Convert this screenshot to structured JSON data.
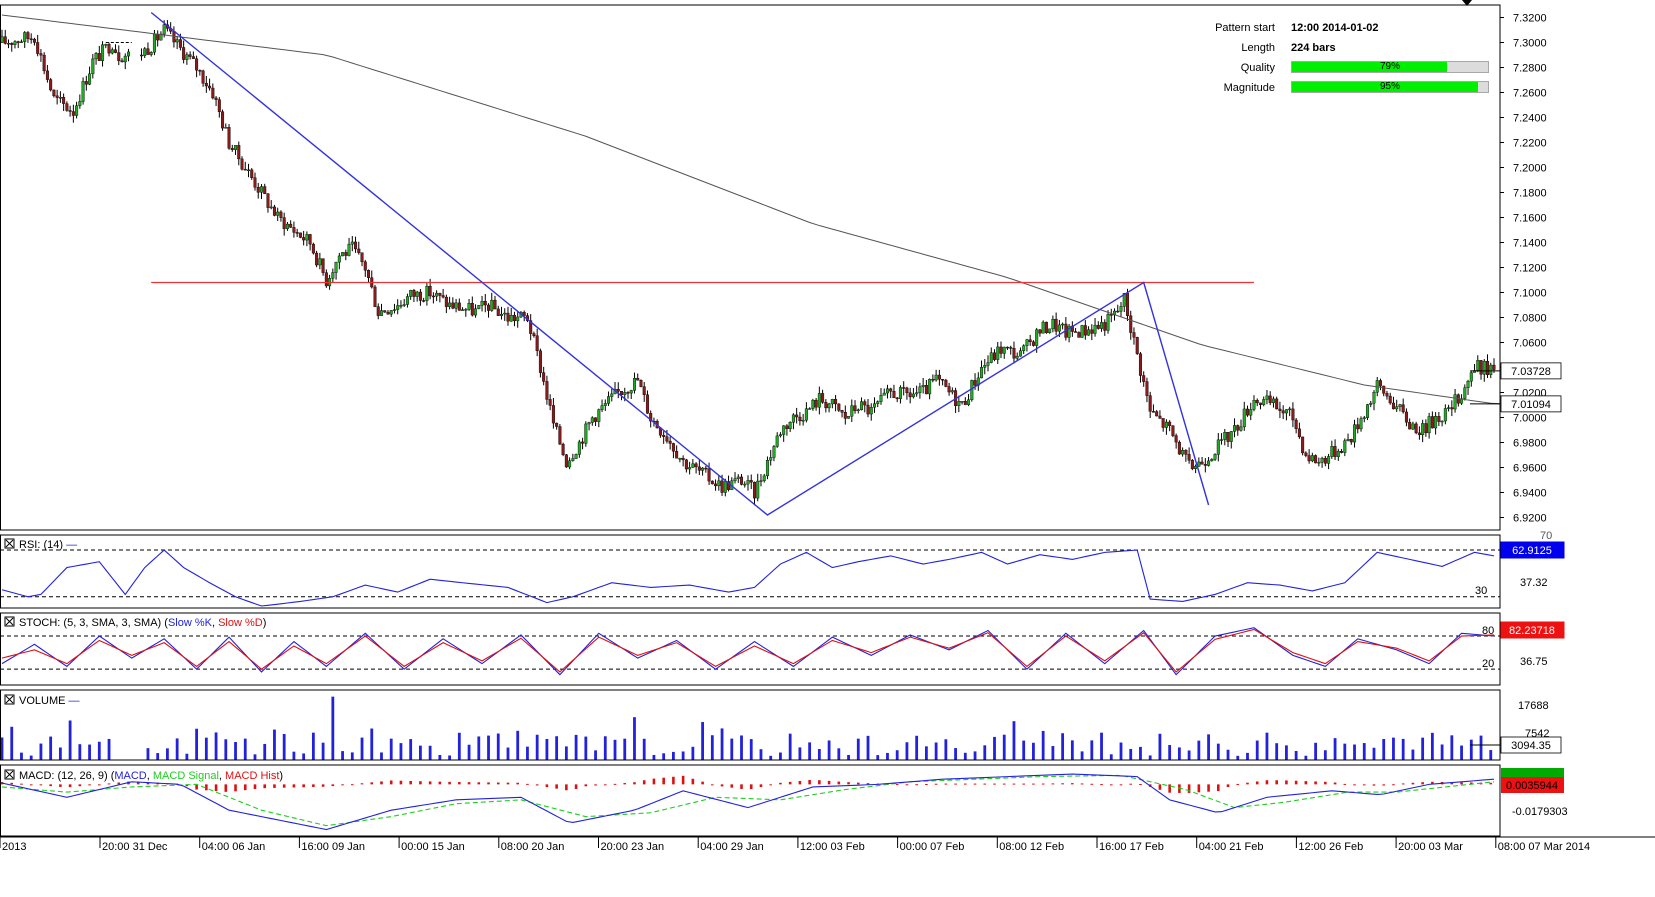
{
  "info": {
    "pattern_start_label": "Pattern start",
    "pattern_start_value": "12:00 2014-01-02",
    "length_label": "Length",
    "length_value": "224 bars",
    "quality_label": "Quality",
    "quality_value": 79,
    "quality_text": "79%",
    "magnitude_label": "Magnitude",
    "magnitude_value": 95,
    "magnitude_text": "95%"
  },
  "colors": {
    "bull": "#22aa22",
    "bear": "#8b1a1a",
    "pattern_line": "#3333dd",
    "resistance": "#ee3333",
    "sma": "#555555",
    "indicator_blue": "#2222dd",
    "indicator_red": "#dd1111",
    "macd_signal": "#22cc22",
    "highlight_badge": "#0000ee"
  },
  "chart_data": {
    "type": "candlestick",
    "x_ticks": [
      "2013",
      "20:00 31 Dec",
      "04:00 06 Jan",
      "16:00 09 Jan",
      "00:00 15 Jan",
      "08:00 20 Jan",
      "20:00 23 Jan",
      "04:00 29 Jan",
      "12:00 03 Feb",
      "00:00 07 Feb",
      "08:00 12 Feb",
      "16:00 17 Feb",
      "04:00 21 Feb",
      "12:00 26 Feb",
      "20:00 03 Mar",
      "08:00 07 Mar 2014"
    ],
    "price": {
      "ylim": [
        6.91,
        7.33
      ],
      "y_ticks": [
        "7.3200",
        "7.3000",
        "7.2800",
        "7.2600",
        "7.2400",
        "7.2200",
        "7.2000",
        "7.1800",
        "7.1600",
        "7.1400",
        "7.1200",
        "7.1000",
        "7.0800",
        "7.0600",
        "7.0400",
        "7.0200",
        "7.0000",
        "6.9800",
        "6.9600",
        "6.9400",
        "6.9200"
      ],
      "path_points": [
        [
          0,
          7.3
        ],
        [
          10,
          7.305
        ],
        [
          16,
          7.255
        ],
        [
          22,
          7.245
        ],
        [
          28,
          7.285
        ],
        [
          34,
          7.3
        ],
        [
          36,
          7.29
        ],
        [
          42,
          7.29
        ],
        [
          46,
          7.298
        ],
        [
          50,
          7.31
        ],
        [
          54,
          7.298
        ],
        [
          60,
          7.28
        ],
        [
          65,
          7.26
        ],
        [
          70,
          7.22
        ],
        [
          75,
          7.2
        ],
        [
          80,
          7.18
        ],
        [
          85,
          7.16
        ],
        [
          90,
          7.15
        ],
        [
          95,
          7.14
        ],
        [
          100,
          7.11
        ],
        [
          104,
          7.13
        ],
        [
          108,
          7.135
        ],
        [
          112,
          7.12
        ],
        [
          116,
          7.085
        ],
        [
          122,
          7.09
        ],
        [
          126,
          7.098
        ],
        [
          132,
          7.1
        ],
        [
          138,
          7.09
        ],
        [
          146,
          7.085
        ],
        [
          150,
          7.09
        ],
        [
          156,
          7.08
        ],
        [
          162,
          7.08
        ],
        [
          166,
          7.04
        ],
        [
          170,
          6.995
        ],
        [
          174,
          6.965
        ],
        [
          178,
          6.98
        ],
        [
          182,
          7.0
        ],
        [
          186,
          7.01
        ],
        [
          190,
          7.02
        ],
        [
          196,
          7.03
        ],
        [
          200,
          7.0
        ],
        [
          205,
          6.985
        ],
        [
          210,
          6.965
        ],
        [
          216,
          6.955
        ],
        [
          222,
          6.945
        ],
        [
          228,
          6.95
        ],
        [
          232,
          6.94
        ],
        [
          236,
          6.965
        ],
        [
          240,
          6.99
        ],
        [
          244,
          7.0
        ],
        [
          248,
          7.005
        ],
        [
          252,
          7.015
        ],
        [
          256,
          7.01
        ],
        [
          260,
          7.0
        ],
        [
          264,
          7.01
        ],
        [
          268,
          7.005
        ],
        [
          274,
          7.02
        ],
        [
          278,
          7.018
        ],
        [
          284,
          7.02
        ],
        [
          288,
          7.03
        ],
        [
          292,
          7.02
        ],
        [
          296,
          7.01
        ],
        [
          302,
          7.04
        ],
        [
          308,
          7.055
        ],
        [
          314,
          7.05
        ],
        [
          320,
          7.07
        ],
        [
          324,
          7.075
        ],
        [
          328,
          7.068
        ],
        [
          334,
          7.07
        ],
        [
          340,
          7.075
        ],
        [
          344,
          7.085
        ],
        [
          346,
          7.095
        ],
        [
          350,
          7.05
        ],
        [
          354,
          7.005
        ],
        [
          360,
          6.99
        ],
        [
          366,
          6.96
        ],
        [
          370,
          6.965
        ],
        [
          374,
          6.975
        ],
        [
          380,
          6.99
        ],
        [
          386,
          7.015
        ],
        [
          392,
          7.01
        ],
        [
          398,
          7.0
        ],
        [
          402,
          6.97
        ],
        [
          406,
          6.965
        ],
        [
          412,
          6.975
        ],
        [
          416,
          6.985
        ],
        [
          420,
          7.005
        ],
        [
          424,
          7.025
        ],
        [
          428,
          7.015
        ],
        [
          434,
          6.995
        ],
        [
          438,
          6.99
        ],
        [
          442,
          7.0
        ],
        [
          446,
          7.005
        ],
        [
          450,
          7.02
        ],
        [
          454,
          7.04
        ],
        [
          458,
          7.04
        ],
        [
          460,
          7.038
        ]
      ],
      "sma_points": [
        [
          0,
          7.322
        ],
        [
          100,
          7.29
        ],
        [
          180,
          7.225
        ],
        [
          250,
          7.155
        ],
        [
          310,
          7.112
        ],
        [
          370,
          7.058
        ],
        [
          420,
          7.026
        ],
        [
          460,
          7.011
        ]
      ],
      "pattern_line": [
        [
          46,
          7.324
        ],
        [
          236,
          6.922
        ],
        [
          352,
          7.108
        ],
        [
          372,
          6.93
        ]
      ],
      "resistance_level": 7.108,
      "last_price": "7.03728",
      "sma_value": "7.01094",
      "candle_count": 461
    },
    "rsi": {
      "label": "RSI: (14)",
      "levels": [
        70,
        30
      ],
      "level_text": "30",
      "ticks": [
        "70",
        "37.32"
      ],
      "value": "62.9125",
      "path_points": [
        [
          0,
          36
        ],
        [
          8,
          30
        ],
        [
          12,
          32
        ],
        [
          20,
          55
        ],
        [
          30,
          60
        ],
        [
          38,
          32
        ],
        [
          44,
          55
        ],
        [
          50,
          70
        ],
        [
          56,
          55
        ],
        [
          64,
          42
        ],
        [
          72,
          30
        ],
        [
          80,
          22
        ],
        [
          92,
          26
        ],
        [
          102,
          30
        ],
        [
          112,
          40
        ],
        [
          122,
          34
        ],
        [
          132,
          45
        ],
        [
          142,
          42
        ],
        [
          156,
          38
        ],
        [
          168,
          25
        ],
        [
          176,
          30
        ],
        [
          188,
          42
        ],
        [
          200,
          38
        ],
        [
          212,
          40
        ],
        [
          224,
          34
        ],
        [
          232,
          38
        ],
        [
          240,
          58
        ],
        [
          248,
          68
        ],
        [
          256,
          55
        ],
        [
          264,
          60
        ],
        [
          274,
          65
        ],
        [
          284,
          58
        ],
        [
          292,
          62
        ],
        [
          302,
          68
        ],
        [
          310,
          58
        ],
        [
          320,
          66
        ],
        [
          330,
          62
        ],
        [
          340,
          68
        ],
        [
          350,
          70
        ],
        [
          354,
          28
        ],
        [
          364,
          26
        ],
        [
          374,
          32
        ],
        [
          384,
          42
        ],
        [
          394,
          40
        ],
        [
          404,
          35
        ],
        [
          414,
          42
        ],
        [
          424,
          68
        ],
        [
          434,
          62
        ],
        [
          444,
          56
        ],
        [
          454,
          68
        ],
        [
          460,
          65
        ]
      ]
    },
    "stoch": {
      "label": "STOCH: (5, 3, SMA, 3, SMA)",
      "legend_k": "Slow %K",
      "legend_d": "Slow %D",
      "levels": [
        80,
        20
      ],
      "ticks": [
        "80",
        "20",
        "36.75"
      ],
      "value": "82.23718",
      "k_points": [
        [
          0,
          30
        ],
        [
          10,
          65
        ],
        [
          20,
          25
        ],
        [
          30,
          80
        ],
        [
          40,
          40
        ],
        [
          50,
          75
        ],
        [
          60,
          20
        ],
        [
          70,
          78
        ],
        [
          80,
          15
        ],
        [
          90,
          70
        ],
        [
          100,
          25
        ],
        [
          112,
          85
        ],
        [
          124,
          20
        ],
        [
          136,
          75
        ],
        [
          148,
          30
        ],
        [
          160,
          82
        ],
        [
          172,
          10
        ],
        [
          184,
          85
        ],
        [
          196,
          40
        ],
        [
          208,
          72
        ],
        [
          220,
          20
        ],
        [
          232,
          70
        ],
        [
          244,
          25
        ],
        [
          256,
          78
        ],
        [
          268,
          45
        ],
        [
          280,
          82
        ],
        [
          292,
          55
        ],
        [
          304,
          90
        ],
        [
          316,
          20
        ],
        [
          328,
          85
        ],
        [
          340,
          30
        ],
        [
          352,
          90
        ],
        [
          362,
          10
        ],
        [
          374,
          80
        ],
        [
          386,
          95
        ],
        [
          398,
          45
        ],
        [
          408,
          25
        ],
        [
          418,
          75
        ],
        [
          430,
          55
        ],
        [
          440,
          30
        ],
        [
          450,
          85
        ],
        [
          460,
          80
        ]
      ],
      "d_points": [
        [
          0,
          40
        ],
        [
          10,
          55
        ],
        [
          20,
          30
        ],
        [
          30,
          72
        ],
        [
          40,
          45
        ],
        [
          50,
          68
        ],
        [
          60,
          25
        ],
        [
          70,
          70
        ],
        [
          80,
          20
        ],
        [
          90,
          62
        ],
        [
          100,
          30
        ],
        [
          112,
          80
        ],
        [
          124,
          25
        ],
        [
          136,
          68
        ],
        [
          148,
          35
        ],
        [
          160,
          76
        ],
        [
          172,
          15
        ],
        [
          184,
          78
        ],
        [
          196,
          45
        ],
        [
          208,
          68
        ],
        [
          220,
          25
        ],
        [
          232,
          62
        ],
        [
          244,
          30
        ],
        [
          256,
          72
        ],
        [
          268,
          50
        ],
        [
          280,
          78
        ],
        [
          292,
          58
        ],
        [
          304,
          86
        ],
        [
          316,
          25
        ],
        [
          328,
          80
        ],
        [
          340,
          35
        ],
        [
          352,
          86
        ],
        [
          362,
          15
        ],
        [
          374,
          74
        ],
        [
          386,
          92
        ],
        [
          398,
          50
        ],
        [
          408,
          30
        ],
        [
          418,
          70
        ],
        [
          430,
          58
        ],
        [
          440,
          35
        ],
        [
          450,
          80
        ],
        [
          460,
          82
        ]
      ]
    },
    "volume": {
      "label": "VOLUME",
      "ticks": [
        "17688",
        "7542"
      ],
      "value": "3094.35",
      "max": 25000,
      "seed": 17
    },
    "macd": {
      "label": "MACD: (12, 26, 9)",
      "legend_macd": "MACD",
      "legend_signal": "MACD Signal",
      "legend_hist": "MACD Hist",
      "ticks": [
        "-0.0179303"
      ],
      "value": "0.0035944",
      "ylim": [
        -0.04,
        0.015
      ],
      "macd_points": [
        [
          0,
          0.001
        ],
        [
          20,
          -0.01
        ],
        [
          40,
          0.002
        ],
        [
          55,
          0.0
        ],
        [
          70,
          -0.02
        ],
        [
          90,
          -0.03
        ],
        [
          100,
          -0.035
        ],
        [
          120,
          -0.02
        ],
        [
          140,
          -0.012
        ],
        [
          160,
          -0.01
        ],
        [
          175,
          -0.03
        ],
        [
          195,
          -0.02
        ],
        [
          210,
          -0.005
        ],
        [
          230,
          -0.018
        ],
        [
          250,
          -0.002
        ],
        [
          270,
          0.0
        ],
        [
          290,
          0.004
        ],
        [
          310,
          0.006
        ],
        [
          330,
          0.008
        ],
        [
          350,
          0.006
        ],
        [
          360,
          -0.012
        ],
        [
          375,
          -0.022
        ],
        [
          390,
          -0.01
        ],
        [
          410,
          -0.005
        ],
        [
          425,
          -0.008
        ],
        [
          440,
          0.0
        ],
        [
          460,
          0.004
        ]
      ],
      "signal_points": [
        [
          0,
          -0.002
        ],
        [
          20,
          -0.006
        ],
        [
          40,
          -0.002
        ],
        [
          60,
          0.0
        ],
        [
          80,
          -0.02
        ],
        [
          100,
          -0.032
        ],
        [
          120,
          -0.025
        ],
        [
          140,
          -0.015
        ],
        [
          160,
          -0.012
        ],
        [
          180,
          -0.025
        ],
        [
          200,
          -0.022
        ],
        [
          220,
          -0.01
        ],
        [
          240,
          -0.012
        ],
        [
          260,
          -0.004
        ],
        [
          280,
          0.002
        ],
        [
          300,
          0.004
        ],
        [
          320,
          0.006
        ],
        [
          345,
          0.007
        ],
        [
          365,
          -0.004
        ],
        [
          380,
          -0.018
        ],
        [
          395,
          -0.014
        ],
        [
          415,
          -0.006
        ],
        [
          430,
          -0.006
        ],
        [
          445,
          -0.002
        ],
        [
          460,
          0.002
        ]
      ]
    }
  }
}
